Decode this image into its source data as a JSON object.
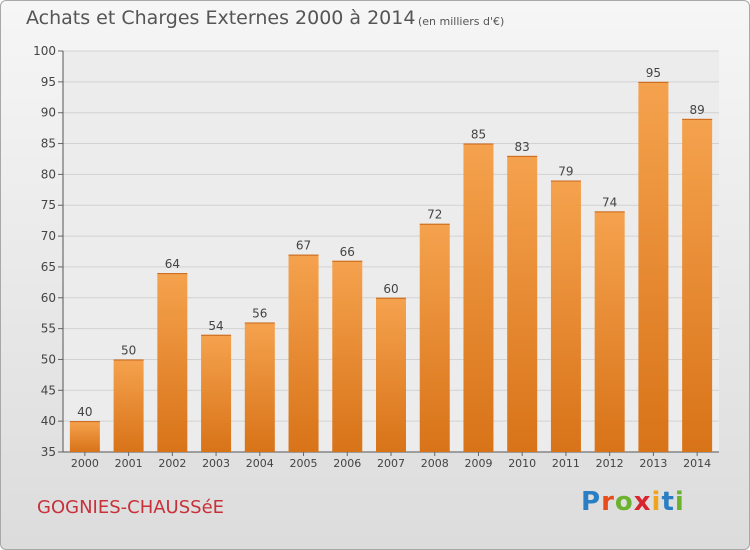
{
  "title": "Achats et Charges Externes 2000 à 2014",
  "unit": "(en milliers d'€)",
  "city": "GOGNIES-CHAUSSéE",
  "brand": {
    "letters": [
      "P",
      "r",
      "o",
      "x",
      "i",
      "t",
      "i"
    ],
    "colors": [
      "#2a7fc4",
      "#e84c1b",
      "#6bb32e",
      "#d9252e",
      "#f0a31c",
      "#2a7fc4",
      "#6bb32e"
    ]
  },
  "colors": {
    "bar_top": "#f5a24e",
    "bar_bottom": "#d87318",
    "title": "#555555",
    "city": "#c8303a"
  },
  "chart_data": {
    "type": "bar",
    "categories": [
      "2000",
      "2001",
      "2002",
      "2003",
      "2004",
      "2005",
      "2006",
      "2007",
      "2008",
      "2009",
      "2010",
      "2011",
      "2012",
      "2013",
      "2014"
    ],
    "values": [
      40,
      50,
      64,
      54,
      56,
      67,
      66,
      60,
      72,
      85,
      83,
      79,
      74,
      95,
      89
    ],
    "ylim": [
      35,
      100
    ],
    "yticks": [
      35,
      40,
      45,
      50,
      55,
      60,
      65,
      70,
      75,
      80,
      85,
      90,
      95,
      100
    ],
    "grid": true,
    "data_labels": true
  }
}
